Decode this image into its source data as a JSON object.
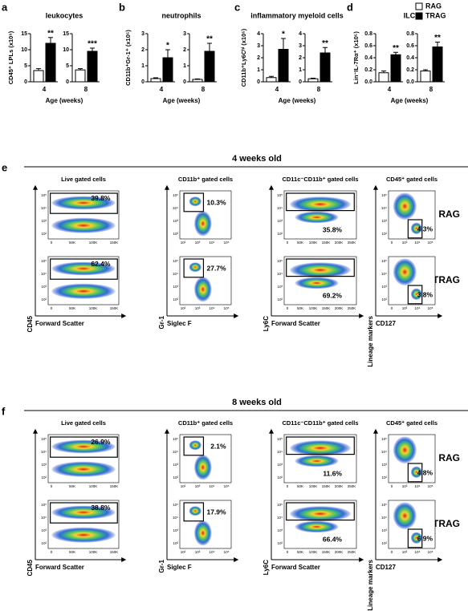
{
  "legend": [
    {
      "name": "RAG",
      "color": "#ffffff"
    },
    {
      "name": "TRAG",
      "color": "#000000"
    }
  ],
  "chart_data": [
    {
      "type": "bar",
      "label": "a",
      "title": "leukocytes",
      "ylabel": "CD45⁺ LPLs (x10⁶)",
      "xlabel": "Age (weeks)",
      "subplots": [
        {
          "category": "4",
          "values": [
            3.5,
            12
          ],
          "errors": [
            0.6,
            1.8
          ],
          "annotation": "**",
          "ylim": [
            0,
            15
          ],
          "yticks": [
            0,
            5,
            10,
            15
          ]
        },
        {
          "category": "8",
          "values": [
            3.7,
            9.5
          ],
          "errors": [
            0.4,
            1.0
          ],
          "annotation": "***",
          "ylim": [
            0,
            15
          ],
          "yticks": [
            0,
            5,
            10,
            15
          ]
        }
      ]
    },
    {
      "type": "bar",
      "label": "b",
      "title": "neutrophils",
      "ylabel": "CD11b⁺Gr-1⁺ (x10⁵)",
      "xlabel": "Age (weeks)",
      "subplots": [
        {
          "category": "4",
          "values": [
            0.2,
            1.5
          ],
          "errors": [
            0.05,
            0.5
          ],
          "annotation": "*",
          "ylim": [
            0,
            3
          ],
          "yticks": [
            0,
            1,
            2,
            3
          ]
        },
        {
          "category": "8",
          "values": [
            0.15,
            1.9
          ],
          "errors": [
            0.03,
            0.5
          ],
          "annotation": "**",
          "ylim": [
            0,
            3
          ],
          "yticks": [
            0,
            1,
            2,
            3
          ]
        }
      ]
    },
    {
      "type": "bar",
      "label": "c",
      "title": "inflammatory myeloid cells",
      "ylabel": "CD11b⁺Ly6Cʰⁱ (x10⁵)",
      "xlabel": "Age (weeks)",
      "subplots": [
        {
          "category": "4",
          "values": [
            0.35,
            2.7
          ],
          "errors": [
            0.1,
            0.9
          ],
          "annotation": "*",
          "ylim": [
            0,
            4
          ],
          "yticks": [
            0,
            1,
            2,
            3,
            4
          ]
        },
        {
          "category": "8",
          "values": [
            0.25,
            2.4
          ],
          "errors": [
            0.05,
            0.45
          ],
          "annotation": "**",
          "ylim": [
            0,
            4
          ],
          "yticks": [
            0,
            1,
            2,
            3,
            4
          ]
        }
      ]
    },
    {
      "type": "bar",
      "label": "d",
      "title": "ILC",
      "ylabel": "Lin⁻IL-7Rα⁺ (x10⁵)",
      "xlabel": "Age (weeks)",
      "subplots": [
        {
          "category": "4",
          "values": [
            0.15,
            0.45
          ],
          "errors": [
            0.03,
            0.04
          ],
          "annotation": "**",
          "ylim": [
            0,
            0.8
          ],
          "yticks": [
            {
              "value": 0,
              "label": "0.0"
            },
            0.2,
            0.4,
            0.6,
            0.8
          ]
        },
        {
          "category": "8",
          "values": [
            0.18,
            0.58
          ],
          "errors": [
            0.02,
            0.08
          ],
          "annotation": "**",
          "ylim": [
            0,
            0.8
          ],
          "yticks": [
            {
              "value": 0,
              "label": "0.0"
            },
            0.2,
            0.4,
            0.6,
            0.8
          ]
        }
      ]
    }
  ],
  "flow_sections": [
    {
      "label": "e",
      "title": "4 weeks old",
      "row_labels": [
        "RAG",
        "TRAG"
      ],
      "columns": [
        {
          "title": "Live gated cells",
          "xlabel": "Forward Scatter",
          "ylabel": "CD45",
          "xticks": [
            "0",
            "50K",
            "100K",
            "150K"
          ],
          "yticks": [
            "10⁵",
            "10⁴",
            "10³",
            "10²"
          ],
          "gates": [
            "39.8%",
            "62.4%"
          ]
        },
        {
          "title": "CD11b⁺ gated cells",
          "xlabel": "Siglec F",
          "ylabel": "Gr-1",
          "xticks": [
            "10²",
            "10³",
            "10⁴",
            "10⁵"
          ],
          "yticks": [
            "10⁵",
            "10⁴",
            "10³",
            "10²"
          ],
          "gates": [
            "10.3%",
            "27.7%"
          ]
        },
        {
          "title": "CD11c⁻CD11b⁺ gated cells",
          "xlabel": "Forward Scatter",
          "ylabel": "Ly6C",
          "xticks": [
            "0",
            "50K",
            "100K",
            "150K",
            "200K",
            "250K"
          ],
          "yticks": [
            "10⁵",
            "10⁴",
            "10³",
            "10²"
          ],
          "gates": [
            "35.8%",
            "69.2%"
          ]
        },
        {
          "title": "CD45⁺ gated cells",
          "xlabel": "CD127",
          "ylabel": "Lineage markers",
          "xticks": [
            "0",
            "10³",
            "10⁴",
            "10⁵"
          ],
          "yticks": [
            "10⁵",
            "10⁴",
            "10³",
            "10²"
          ],
          "gates": [
            "4.3%",
            "3.8%"
          ]
        }
      ]
    },
    {
      "label": "f",
      "title": "8 weeks old",
      "row_labels": [
        "RAG",
        "TRAG"
      ],
      "columns": [
        {
          "title": "Live gated cells",
          "xlabel": "Forward Scatter",
          "ylabel": "CD45",
          "xticks": [
            "0",
            "50K",
            "100K",
            "150K"
          ],
          "yticks": [
            "10⁵",
            "10⁴",
            "10³",
            "10²"
          ],
          "gates": [
            "26.9%",
            "38.8%"
          ]
        },
        {
          "title": "CD11b⁺ gated cells",
          "xlabel": "Siglec F",
          "ylabel": "Gr-1",
          "xticks": [
            "10²",
            "10³",
            "10⁴",
            "10⁵"
          ],
          "yticks": [
            "10⁵",
            "10⁴",
            "10³",
            "10²"
          ],
          "gates": [
            "2.1%",
            "17.9%"
          ]
        },
        {
          "title": "CD11c⁻CD11b⁺ gated cells",
          "xlabel": "Forward Scatter",
          "ylabel": "Ly6C",
          "xticks": [
            "0",
            "50K",
            "100K",
            "150K",
            "200K",
            "250K"
          ],
          "yticks": [
            "10⁵",
            "10⁴",
            "10³",
            "10²"
          ],
          "gates": [
            "11.6%",
            "66.4%"
          ]
        },
        {
          "title": "CD45⁺ gated cells",
          "xlabel": "CD127",
          "ylabel": "Lineage markers",
          "xticks": [
            "0",
            "10³",
            "10⁴",
            "10⁵"
          ],
          "yticks": [
            "10⁵",
            "10⁴",
            "10³",
            "10²"
          ],
          "gates": [
            "4.8%",
            "6.9%"
          ]
        }
      ]
    }
  ]
}
